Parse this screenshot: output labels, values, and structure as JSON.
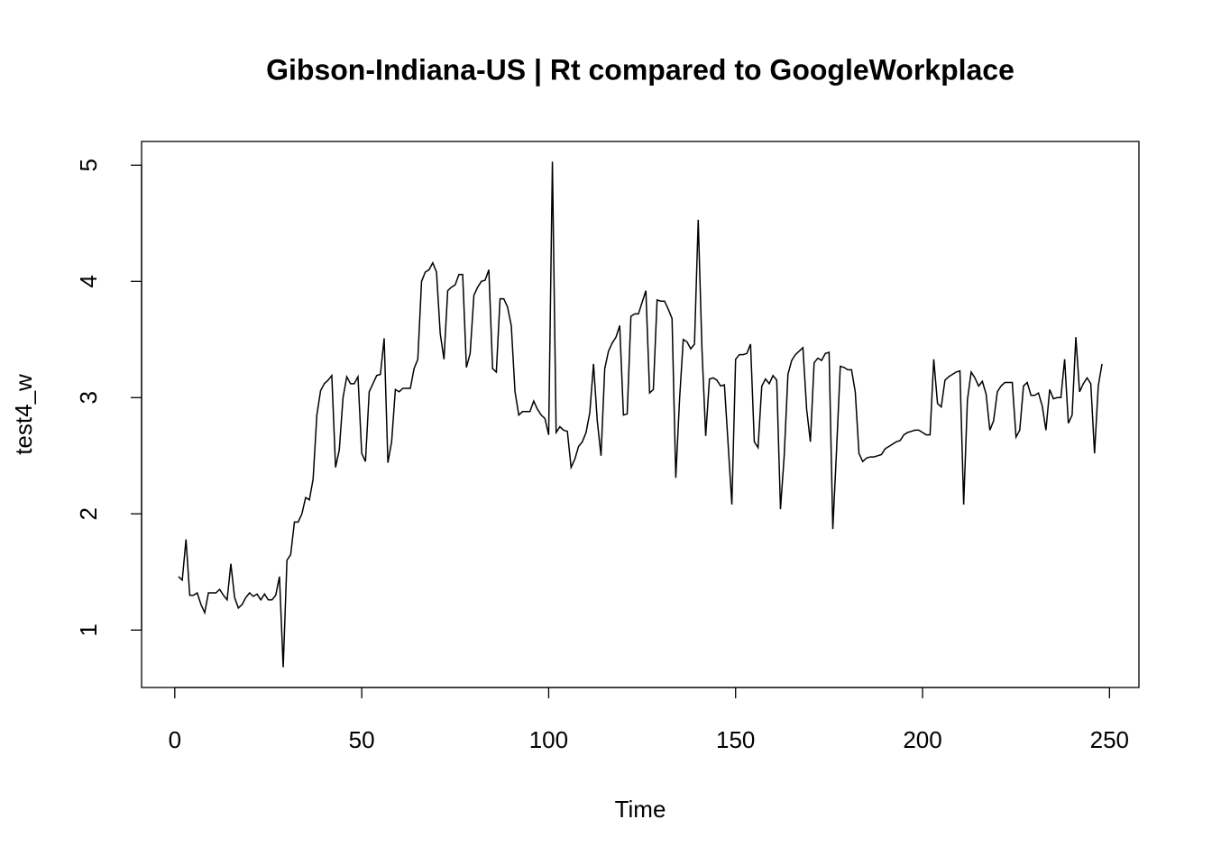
{
  "chart_data": {
    "type": "line",
    "title": "Gibson-Indiana-US | Rt compared to GoogleWorkplace",
    "xlabel": "Time",
    "ylabel": "test4_w",
    "color": "#000000",
    "x": [
      1,
      2,
      3,
      4,
      5,
      6,
      7,
      8,
      9,
      10,
      11,
      12,
      13,
      14,
      15,
      16,
      17,
      18,
      19,
      20,
      21,
      22,
      23,
      24,
      25,
      26,
      27,
      28,
      29,
      30,
      31,
      32,
      33,
      34,
      35,
      36,
      37,
      38,
      39,
      40,
      41,
      42,
      43,
      44,
      45,
      46,
      47,
      48,
      49,
      50,
      51,
      52,
      53,
      54,
      55,
      56,
      57,
      58,
      59,
      60,
      61,
      62,
      63,
      64,
      65,
      66,
      67,
      68,
      69,
      70,
      71,
      72,
      73,
      74,
      75,
      76,
      77,
      78,
      79,
      80,
      81,
      82,
      83,
      84,
      85,
      86,
      87,
      88,
      89,
      90,
      91,
      92,
      93,
      94,
      95,
      96,
      97,
      98,
      99,
      100,
      101,
      102,
      103,
      104,
      105,
      106,
      107,
      108,
      109,
      110,
      111,
      112,
      113,
      114,
      115,
      116,
      117,
      118,
      119,
      120,
      121,
      122,
      123,
      124,
      125,
      126,
      127,
      128,
      129,
      130,
      131,
      132,
      133,
      134,
      135,
      136,
      137,
      138,
      139,
      140,
      141,
      142,
      143,
      144,
      145,
      146,
      147,
      148,
      149,
      150,
      151,
      152,
      153,
      154,
      155,
      156,
      157,
      158,
      159,
      160,
      161,
      162,
      163,
      164,
      165,
      166,
      167,
      168,
      169,
      170,
      171,
      172,
      173,
      174,
      175,
      176,
      177,
      178,
      179,
      180,
      181,
      182,
      183,
      184,
      185,
      186,
      187,
      188,
      189,
      190,
      191,
      192,
      193,
      194,
      195,
      196,
      197,
      198,
      199,
      200,
      201,
      202,
      203,
      204,
      205,
      206,
      207,
      208,
      209,
      210,
      211,
      212,
      213,
      214,
      215,
      216,
      217,
      218,
      219,
      220,
      221,
      222,
      223,
      224,
      225,
      226,
      227,
      228,
      229,
      230,
      231,
      232,
      233,
      234,
      235,
      236,
      237,
      238,
      239,
      240,
      241,
      242,
      243,
      244,
      245,
      246,
      247,
      248
    ],
    "values": [
      1.46,
      1.43,
      1.78,
      1.3,
      1.3,
      1.32,
      1.22,
      1.15,
      1.32,
      1.32,
      1.32,
      1.35,
      1.3,
      1.26,
      1.57,
      1.28,
      1.19,
      1.22,
      1.28,
      1.32,
      1.29,
      1.31,
      1.26,
      1.31,
      1.26,
      1.26,
      1.3,
      1.46,
      0.68,
      1.6,
      1.65,
      1.93,
      1.93,
      2.0,
      2.14,
      2.12,
      2.3,
      2.85,
      3.06,
      3.12,
      3.15,
      3.19,
      2.4,
      2.55,
      3.0,
      3.18,
      3.12,
      3.12,
      3.18,
      2.52,
      2.45,
      3.05,
      3.12,
      3.19,
      3.2,
      3.51,
      2.44,
      2.62,
      3.07,
      3.05,
      3.08,
      3.08,
      3.08,
      3.25,
      3.33,
      4.0,
      4.08,
      4.1,
      4.16,
      4.08,
      3.55,
      3.33,
      3.92,
      3.95,
      3.97,
      4.06,
      4.06,
      3.26,
      3.38,
      3.88,
      3.95,
      4.0,
      4.01,
      4.1,
      3.25,
      3.22,
      3.85,
      3.85,
      3.78,
      3.62,
      3.05,
      2.85,
      2.88,
      2.88,
      2.88,
      2.97,
      2.9,
      2.85,
      2.82,
      2.68,
      5.03,
      2.7,
      2.75,
      2.72,
      2.71,
      2.4,
      2.47,
      2.58,
      2.62,
      2.7,
      2.87,
      3.29,
      2.8,
      2.5,
      3.25,
      3.4,
      3.47,
      3.52,
      3.62,
      2.85,
      2.86,
      3.7,
      3.72,
      3.72,
      3.82,
      3.92,
      3.04,
      3.07,
      3.84,
      3.83,
      3.83,
      3.76,
      3.68,
      2.31,
      2.98,
      3.5,
      3.48,
      3.42,
      3.46,
      4.53,
      3.42,
      2.67,
      3.16,
      3.17,
      3.15,
      3.1,
      3.11,
      2.6,
      2.08,
      3.33,
      3.37,
      3.37,
      3.38,
      3.46,
      2.62,
      2.57,
      3.1,
      3.16,
      3.12,
      3.19,
      3.15,
      2.04,
      2.5,
      3.2,
      3.32,
      3.37,
      3.4,
      3.43,
      2.9,
      2.62,
      3.3,
      3.34,
      3.32,
      3.38,
      3.39,
      1.87,
      2.55,
      3.27,
      3.26,
      3.24,
      3.24,
      3.05,
      2.52,
      2.45,
      2.48,
      2.49,
      2.49,
      2.5,
      2.51,
      2.56,
      2.58,
      2.6,
      2.62,
      2.63,
      2.68,
      2.7,
      2.71,
      2.72,
      2.72,
      2.7,
      2.68,
      2.68,
      3.33,
      2.95,
      2.92,
      3.15,
      3.18,
      3.2,
      3.22,
      3.23,
      2.08,
      2.98,
      3.22,
      3.17,
      3.1,
      3.14,
      3.03,
      2.72,
      2.8,
      3.05,
      3.1,
      3.13,
      3.13,
      3.13,
      2.66,
      2.72,
      3.1,
      3.13,
      3.02,
      3.02,
      3.04,
      2.93,
      2.72,
      3.07,
      2.99,
      3.0,
      3.0,
      3.33,
      2.78,
      2.85,
      3.52,
      3.05,
      3.12,
      3.17,
      3.12,
      2.52,
      3.1,
      3.29
    ],
    "xlim": [
      -8.88,
      257.88
    ],
    "xticks": [
      0,
      50,
      100,
      150,
      200,
      250
    ],
    "ylim": [
      0.506,
      5.204
    ],
    "yticks": [
      1,
      2,
      3,
      4,
      5
    ]
  }
}
